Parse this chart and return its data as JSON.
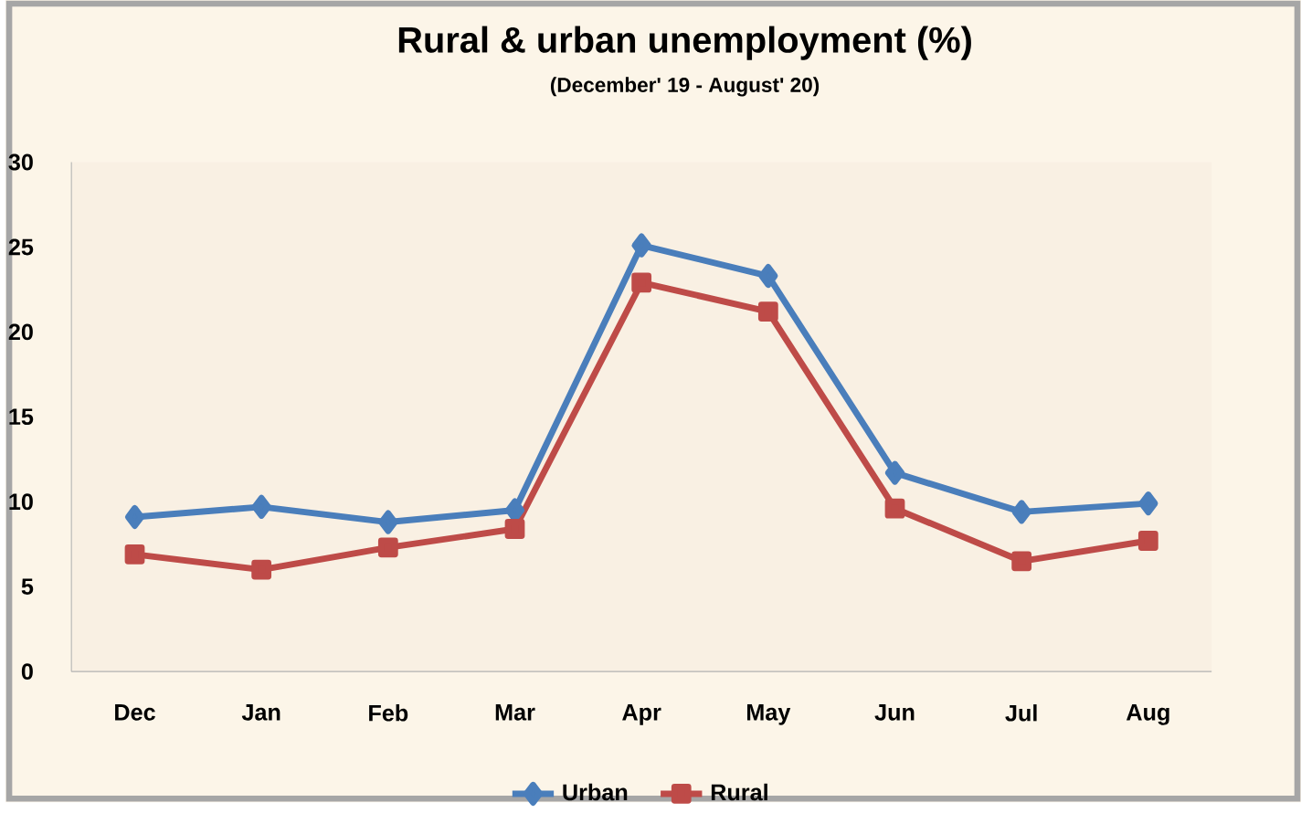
{
  "chart_data": {
    "type": "line",
    "title": "Rural & urban unemployment (%)",
    "subtitle": "(December' 19 - August' 20)",
    "categories": [
      "Dec",
      "Jan",
      "Feb",
      "Mar",
      "Apr",
      "May",
      "Jun",
      "Jul",
      "Aug"
    ],
    "series": [
      {
        "name": "Urban",
        "color": "#4a7ebb",
        "marker": "diamond",
        "values": [
          9.1,
          9.7,
          8.8,
          9.5,
          25.1,
          23.3,
          11.7,
          9.4,
          9.9
        ]
      },
      {
        "name": "Rural",
        "color": "#be4b48",
        "marker": "square",
        "values": [
          6.9,
          6.0,
          7.3,
          8.4,
          22.9,
          21.2,
          9.6,
          6.5,
          7.7
        ]
      }
    ],
    "ylim": [
      0,
      30
    ],
    "yticks": [
      0,
      5,
      10,
      15,
      20,
      25,
      30
    ],
    "grid": false,
    "legend": "bottom",
    "line_style": "solid"
  }
}
